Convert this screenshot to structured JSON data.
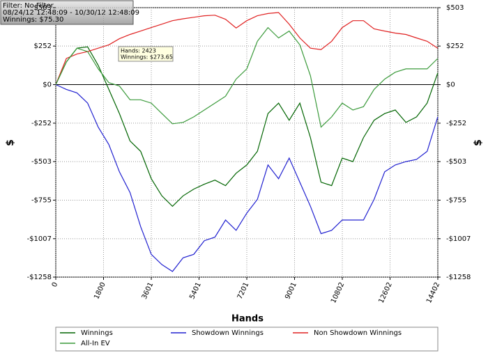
{
  "chart_data": {
    "type": "line",
    "info_box": [
      "Filter: No Filter",
      "08/24/12 12:48:09 - 10/30/12 12:48:09",
      "Winnings: $75.30"
    ],
    "tooltip": [
      "Hands: 2423",
      "Winnings: $273.65"
    ],
    "xlabel": "Hands",
    "ylabel": "$",
    "y2label": "$",
    "x": [
      0,
      400,
      800,
      1200,
      1600,
      2000,
      2400,
      2800,
      3200,
      3600,
      4000,
      4400,
      4800,
      5200,
      5600,
      6000,
      6400,
      6800,
      7200,
      7600,
      8000,
      8400,
      8800,
      9200,
      9600,
      10000,
      10400,
      10800,
      11200,
      11600,
      12000,
      12400,
      12800,
      13200,
      13600,
      14000,
      14400
    ],
    "series": [
      {
        "name": "Winnings",
        "color": "#006400",
        "values": [
          0,
          148,
          238,
          247,
          126,
          -31,
          -189,
          -368,
          -436,
          -615,
          -727,
          -795,
          -727,
          -683,
          -651,
          -624,
          -660,
          -579,
          -525,
          -436,
          -189,
          -121,
          -233,
          -121,
          -346,
          -638,
          -660,
          -480,
          -503,
          -346,
          -233,
          -189,
          -166,
          -247,
          -211,
          -121,
          76
        ]
      },
      {
        "name": "Showdown Winnings",
        "color": "#2020d0",
        "values": [
          0,
          -31,
          -54,
          -121,
          -278,
          -391,
          -570,
          -705,
          -929,
          -1109,
          -1176,
          -1221,
          -1132,
          -1109,
          -1020,
          -997,
          -885,
          -952,
          -840,
          -750,
          -525,
          -615,
          -480,
          -638,
          -795,
          -974,
          -952,
          -885,
          -885,
          -885,
          -750,
          -570,
          -525,
          -503,
          -489,
          -436,
          -211
        ]
      },
      {
        "name": "Non Showdown Winnings",
        "color": "#e02020",
        "values": [
          0,
          171,
          200,
          216,
          238,
          260,
          300,
          328,
          350,
          373,
          395,
          418,
          430,
          440,
          450,
          454,
          427,
          370,
          418,
          450,
          465,
          471,
          395,
          305,
          238,
          229,
          283,
          373,
          418,
          418,
          364,
          350,
          337,
          328,
          305,
          283,
          238
        ]
      },
      {
        "name": "All-In EV",
        "color": "#3a9a3a",
        "values": [
          0,
          148,
          238,
          216,
          103,
          13,
          -9,
          -99,
          -99,
          -121,
          -189,
          -256,
          -247,
          -211,
          -166,
          -121,
          -76,
          36,
          103,
          283,
          373,
          305,
          350,
          260,
          58,
          -278,
          -211,
          -121,
          -166,
          -144,
          -31,
          36,
          81,
          103,
          103,
          103,
          171
        ]
      }
    ],
    "xlim": [
      0,
      14402
    ],
    "xticks": [
      0,
      1800,
      3601,
      5401,
      7201,
      9001,
      10802,
      12602,
      14402
    ],
    "ylim": [
      -1258,
      503
    ],
    "yticks": [
      {
        "value": -1258,
        "label": "-$1258"
      },
      {
        "value": -1007,
        "label": "-$1007"
      },
      {
        "value": -755,
        "label": "-$755"
      },
      {
        "value": -503,
        "label": "-$503"
      },
      {
        "value": -252,
        "label": "-$252"
      },
      {
        "value": 0,
        "label": "$0"
      },
      {
        "value": 252,
        "label": "$252"
      },
      {
        "value": 503,
        "label": "$503"
      }
    ],
    "grid": true,
    "legend": "bottom"
  }
}
